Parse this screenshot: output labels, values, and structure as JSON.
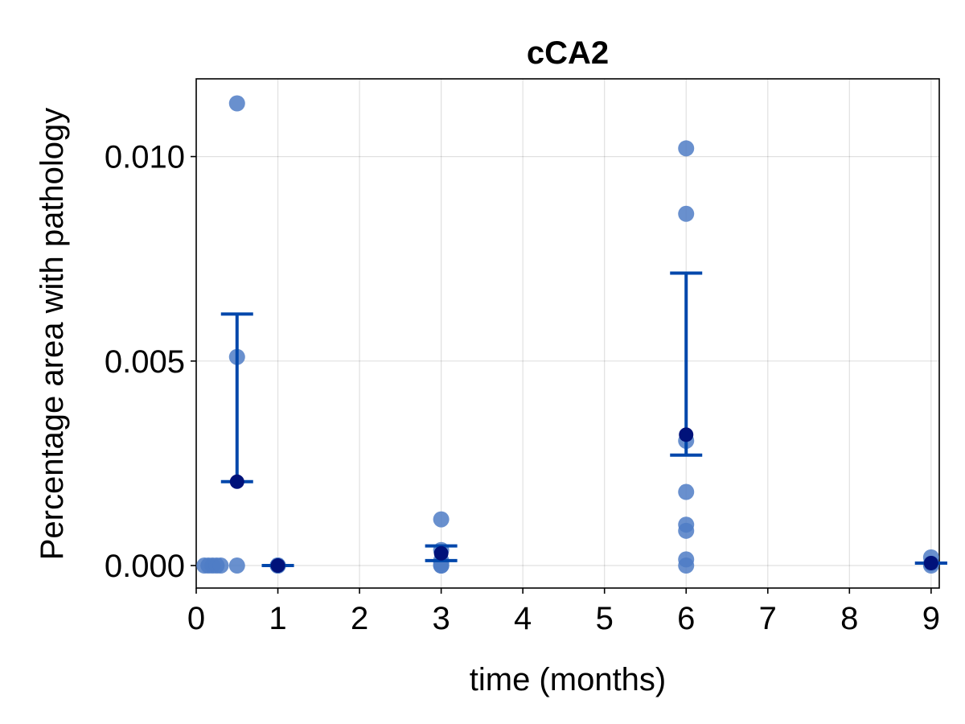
{
  "chart_data": {
    "type": "scatter",
    "title": "cCA2",
    "xlabel": "time (months)",
    "ylabel": "Percentage area with pathology",
    "xlim": [
      0,
      9.1
    ],
    "ylim": [
      -0.00055,
      0.0119
    ],
    "x_ticks": [
      0,
      1,
      2,
      3,
      4,
      5,
      6,
      7,
      8,
      9
    ],
    "x_tick_labels": [
      "0",
      "1",
      "2",
      "3",
      "4",
      "5",
      "6",
      "7",
      "8",
      "9"
    ],
    "y_ticks": [
      0,
      0.005,
      0.01
    ],
    "y_tick_labels": [
      "0.000",
      "0.005",
      "0.010"
    ],
    "grid": true,
    "legend": "none",
    "colors": {
      "points": "#4f7cc6",
      "mean": "#00127a",
      "errorbar": "#0047ab"
    },
    "series": [
      {
        "points": [
          {
            "x": 0.1,
            "y": 0
          },
          {
            "x": 0.15,
            "y": 0
          },
          {
            "x": 0.2,
            "y": 0
          },
          {
            "x": 0.25,
            "y": 0
          },
          {
            "x": 0.3,
            "y": 0
          },
          {
            "x": 0.5,
            "y": 0
          },
          {
            "x": 0.5,
            "y": 0.0113
          },
          {
            "x": 0.5,
            "y": 0.0051
          },
          {
            "x": 1,
            "y": 0
          },
          {
            "x": 1,
            "y": 0
          },
          {
            "x": 1,
            "y": 0
          },
          {
            "x": 3,
            "y": 0.00113
          },
          {
            "x": 3,
            "y": 0.00038
          },
          {
            "x": 3,
            "y": 0.00012
          },
          {
            "x": 3,
            "y": 5e-05
          },
          {
            "x": 3,
            "y": 0
          },
          {
            "x": 3,
            "y": 0
          },
          {
            "x": 6,
            "y": 0.0102
          },
          {
            "x": 6,
            "y": 0.0086
          },
          {
            "x": 6,
            "y": 0.00305
          },
          {
            "x": 6,
            "y": 0.0018
          },
          {
            "x": 6,
            "y": 0.001
          },
          {
            "x": 6,
            "y": 0.00085
          },
          {
            "x": 6,
            "y": 0.00015
          },
          {
            "x": 6,
            "y": 0
          },
          {
            "x": 9,
            "y": 0.0002
          },
          {
            "x": 9,
            "y": 5e-05
          },
          {
            "x": 9,
            "y": 0
          }
        ]
      },
      {
        "means": [
          {
            "x": 0.5,
            "y": 0.00205
          },
          {
            "x": 1,
            "y": 0
          },
          {
            "x": 3,
            "y": 0.0003
          },
          {
            "x": 6,
            "y": 0.0032
          },
          {
            "x": 9,
            "y": 6e-05
          }
        ]
      },
      {
        "error_bars": [
          {
            "x": 0.5,
            "low": 0.00205,
            "high": 0.00615
          },
          {
            "x": 1,
            "low": 0,
            "high": 0
          },
          {
            "x": 3,
            "low": 0.00012,
            "high": 0.00048
          },
          {
            "x": 6,
            "low": 0.0027,
            "high": 0.00715
          },
          {
            "x": 9,
            "low": 6e-05,
            "high": 6e-05
          }
        ]
      }
    ]
  }
}
